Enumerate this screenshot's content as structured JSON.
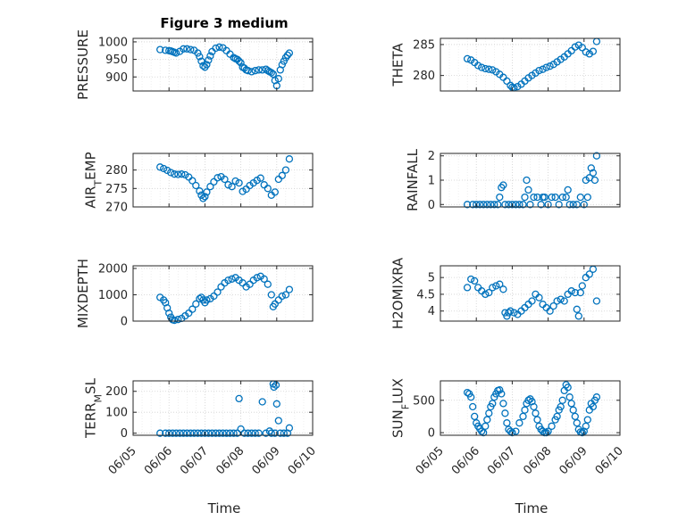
{
  "chart_data": {
    "type": "scatter",
    "title": "Figure 3 medium",
    "x_tick_labels": [
      "06/05",
      "06/06",
      "06/07",
      "06/08",
      "06/09",
      "06/10"
    ],
    "x_label": "Time",
    "marker": "circle",
    "marker_color": "#0072BD",
    "grid": true,
    "grid_style": "dotted",
    "panels": [
      {
        "id": "pressure",
        "ylabel": "PRESSURE",
        "ylim": [
          860,
          1010
        ],
        "yticks": [
          900,
          950,
          1000
        ],
        "x": [
          5.75,
          5.9,
          6.0,
          6.05,
          6.1,
          6.15,
          6.2,
          6.3,
          6.4,
          6.5,
          6.6,
          6.7,
          6.8,
          6.85,
          6.9,
          6.95,
          7.0,
          7.05,
          7.1,
          7.15,
          7.2,
          7.3,
          7.4,
          7.5,
          7.6,
          7.7,
          7.8,
          7.85,
          7.9,
          7.95,
          8.0,
          8.05,
          8.1,
          8.15,
          8.2,
          8.3,
          8.4,
          8.5,
          8.6,
          8.7,
          8.75,
          8.8,
          8.85,
          8.9,
          8.95,
          9.0,
          9.05,
          9.1,
          9.15,
          9.2,
          9.25,
          9.3,
          9.35
        ],
        "y": [
          978,
          976,
          975,
          974,
          972,
          970,
          968,
          973,
          980,
          980,
          978,
          976,
          968,
          958,
          945,
          932,
          928,
          935,
          948,
          960,
          972,
          982,
          985,
          983,
          975,
          965,
          955,
          952,
          950,
          945,
          940,
          928,
          925,
          920,
          918,
          915,
          918,
          920,
          920,
          922,
          918,
          915,
          912,
          908,
          890,
          875,
          895,
          920,
          935,
          945,
          955,
          962,
          968
        ]
      },
      {
        "id": "theta",
        "ylabel": "THETA",
        "ylim": [
          277.5,
          286
        ],
        "yticks": [
          280,
          285
        ],
        "x": [
          5.75,
          5.85,
          5.95,
          6.05,
          6.15,
          6.25,
          6.35,
          6.45,
          6.55,
          6.65,
          6.75,
          6.85,
          6.95,
          7.0,
          7.05,
          7.15,
          7.25,
          7.35,
          7.45,
          7.55,
          7.65,
          7.75,
          7.85,
          7.95,
          8.05,
          8.15,
          8.25,
          8.35,
          8.45,
          8.55,
          8.65,
          8.75,
          8.85,
          8.95,
          9.05,
          9.15,
          9.25,
          9.35
        ],
        "y": [
          282.7,
          282.5,
          282.1,
          281.6,
          281.3,
          281.1,
          281.0,
          280.9,
          280.6,
          280.2,
          279.7,
          279.1,
          278.4,
          278.1,
          278.0,
          278.2,
          278.6,
          279.1,
          279.6,
          280.0,
          280.4,
          280.8,
          281.0,
          281.3,
          281.5,
          281.8,
          282.2,
          282.6,
          283.0,
          283.5,
          284.0,
          284.6,
          284.9,
          284.5,
          283.8,
          283.5,
          283.9,
          285.5
        ]
      },
      {
        "id": "air_temp",
        "ylabel": "AIR_TEMP",
        "ylim": [
          270,
          284.5
        ],
        "yticks": [
          270,
          275,
          280
        ],
        "x": [
          5.75,
          5.85,
          5.95,
          6.05,
          6.15,
          6.25,
          6.35,
          6.45,
          6.55,
          6.65,
          6.75,
          6.85,
          6.9,
          6.95,
          7.0,
          7.05,
          7.15,
          7.25,
          7.35,
          7.45,
          7.55,
          7.65,
          7.75,
          7.85,
          7.95,
          8.05,
          8.15,
          8.25,
          8.35,
          8.45,
          8.55,
          8.65,
          8.75,
          8.85,
          8.95,
          9.05,
          9.15,
          9.25,
          9.35
        ],
        "y": [
          280.8,
          280.4,
          279.9,
          279.3,
          278.9,
          278.8,
          278.9,
          278.7,
          278.1,
          277.1,
          275.8,
          274.3,
          273.2,
          272.3,
          272.8,
          274.0,
          275.5,
          276.8,
          277.9,
          278.2,
          277.5,
          276.0,
          275.5,
          277.0,
          276.5,
          274.2,
          274.8,
          275.8,
          276.5,
          277.2,
          277.8,
          276.0,
          275.0,
          273.2,
          274.0,
          277.5,
          278.5,
          280.0,
          283.0
        ]
      },
      {
        "id": "rainfall",
        "ylabel": "RAINFALL",
        "ylim": [
          -0.1,
          2.1
        ],
        "yticks": [
          0,
          1,
          2
        ],
        "x": [
          5.75,
          5.9,
          6.0,
          6.1,
          6.2,
          6.3,
          6.4,
          6.5,
          6.6,
          6.65,
          6.7,
          6.75,
          6.8,
          6.9,
          7.0,
          7.1,
          7.2,
          7.3,
          7.35,
          7.4,
          7.45,
          7.5,
          7.6,
          7.7,
          7.8,
          7.85,
          7.9,
          8.0,
          8.1,
          8.2,
          8.3,
          8.4,
          8.5,
          8.55,
          8.6,
          8.7,
          8.8,
          8.9,
          9.0,
          9.05,
          9.1,
          9.15,
          9.2,
          9.25,
          9.3,
          9.35
        ],
        "y": [
          0,
          0,
          0,
          0,
          0,
          0,
          0,
          0,
          0,
          0.3,
          0.7,
          0.8,
          0,
          0,
          0,
          0,
          0,
          0,
          0.3,
          1.0,
          0.6,
          0,
          0.3,
          0.3,
          0,
          0.3,
          0.3,
          0,
          0.3,
          0.3,
          0,
          0.3,
          0.3,
          0.6,
          0,
          0,
          0,
          0.3,
          0,
          1.0,
          0.3,
          1.1,
          1.5,
          1.3,
          1.0,
          2.0
        ]
      },
      {
        "id": "mixdepth",
        "ylabel": "MIXDEPTH",
        "ylim": [
          0,
          2100
        ],
        "yticks": [
          0,
          1000,
          2000
        ],
        "x": [
          5.75,
          5.85,
          5.9,
          5.95,
          6.0,
          6.05,
          6.1,
          6.15,
          6.25,
          6.35,
          6.45,
          6.55,
          6.65,
          6.75,
          6.85,
          6.9,
          6.95,
          7.0,
          7.05,
          7.15,
          7.25,
          7.35,
          7.45,
          7.55,
          7.65,
          7.75,
          7.85,
          7.95,
          8.05,
          8.15,
          8.25,
          8.35,
          8.45,
          8.55,
          8.65,
          8.75,
          8.85,
          8.9,
          8.95,
          9.05,
          9.15,
          9.25,
          9.35
        ],
        "y": [
          900,
          800,
          700,
          500,
          300,
          150,
          50,
          30,
          60,
          100,
          200,
          300,
          450,
          650,
          850,
          900,
          800,
          700,
          800,
          850,
          950,
          1100,
          1300,
          1450,
          1550,
          1600,
          1650,
          1550,
          1450,
          1300,
          1400,
          1550,
          1650,
          1700,
          1600,
          1400,
          1000,
          550,
          650,
          800,
          950,
          1000,
          1200
        ]
      },
      {
        "id": "h2omixra",
        "ylabel": "H2OMIXRA",
        "ylim": [
          3.7,
          5.35
        ],
        "yticks": [
          4,
          4.5,
          5
        ],
        "x": [
          5.75,
          5.85,
          5.95,
          6.05,
          6.15,
          6.25,
          6.35,
          6.45,
          6.55,
          6.65,
          6.75,
          6.8,
          6.85,
          6.9,
          6.95,
          7.05,
          7.15,
          7.25,
          7.35,
          7.45,
          7.55,
          7.65,
          7.75,
          7.85,
          7.95,
          8.05,
          8.15,
          8.25,
          8.35,
          8.45,
          8.55,
          8.65,
          8.75,
          8.8,
          8.85,
          8.9,
          8.95,
          9.05,
          9.15,
          9.25,
          9.35
        ],
        "y": [
          4.7,
          4.95,
          4.9,
          4.7,
          4.6,
          4.5,
          4.55,
          4.7,
          4.75,
          4.8,
          4.65,
          3.95,
          3.85,
          3.95,
          4.0,
          3.95,
          3.9,
          4.0,
          4.1,
          4.2,
          4.3,
          4.5,
          4.4,
          4.2,
          4.1,
          4.0,
          4.15,
          4.3,
          4.35,
          4.3,
          4.5,
          4.6,
          4.55,
          4.05,
          3.85,
          4.55,
          4.75,
          5.0,
          5.1,
          5.25,
          4.3
        ]
      },
      {
        "id": "terr_msl",
        "ylabel": "TERR_MSL",
        "ylim": [
          -10,
          250
        ],
        "yticks": [
          0,
          100,
          200
        ],
        "x": [
          5.75,
          5.9,
          6.0,
          6.1,
          6.2,
          6.3,
          6.4,
          6.5,
          6.6,
          6.7,
          6.8,
          6.9,
          7.0,
          7.1,
          7.2,
          7.3,
          7.4,
          7.5,
          7.6,
          7.7,
          7.8,
          7.9,
          7.95,
          8.0,
          8.1,
          8.2,
          8.3,
          8.4,
          8.5,
          8.6,
          8.7,
          8.8,
          8.85,
          8.9,
          8.92,
          8.95,
          8.98,
          9.0,
          9.05,
          9.1,
          9.2,
          9.3,
          9.35
        ],
        "y": [
          0,
          0,
          0,
          0,
          0,
          0,
          0,
          0,
          0,
          0,
          0,
          0,
          0,
          0,
          0,
          0,
          0,
          0,
          0,
          0,
          0,
          0,
          165,
          20,
          0,
          0,
          0,
          0,
          0,
          150,
          0,
          10,
          0,
          235,
          220,
          0,
          230,
          140,
          60,
          0,
          0,
          0,
          25
        ]
      },
      {
        "id": "sun_flux",
        "ylabel": "SUN_FLUX",
        "ylim": [
          -40,
          800
        ],
        "yticks": [
          0,
          500
        ],
        "x": [
          5.75,
          5.8,
          5.85,
          5.9,
          5.95,
          6.0,
          6.05,
          6.1,
          6.15,
          6.2,
          6.25,
          6.3,
          6.35,
          6.4,
          6.45,
          6.5,
          6.55,
          6.6,
          6.65,
          6.7,
          6.75,
          6.8,
          6.85,
          6.9,
          6.95,
          7.0,
          7.1,
          7.2,
          7.3,
          7.35,
          7.4,
          7.45,
          7.5,
          7.55,
          7.6,
          7.65,
          7.7,
          7.75,
          7.8,
          7.85,
          7.9,
          7.95,
          8.0,
          8.1,
          8.2,
          8.25,
          8.3,
          8.35,
          8.4,
          8.45,
          8.5,
          8.55,
          8.6,
          8.65,
          8.7,
          8.75,
          8.8,
          8.85,
          8.9,
          8.95,
          9.0,
          9.05,
          9.1,
          9.15,
          9.2,
          9.25,
          9.3,
          9.35
        ],
        "y": [
          620,
          600,
          550,
          400,
          250,
          150,
          100,
          60,
          20,
          0,
          100,
          200,
          300,
          400,
          450,
          550,
          600,
          650,
          660,
          600,
          450,
          300,
          150,
          50,
          20,
          0,
          20,
          150,
          250,
          350,
          450,
          500,
          520,
          480,
          400,
          300,
          200,
          100,
          50,
          20,
          0,
          0,
          20,
          100,
          200,
          250,
          350,
          400,
          500,
          650,
          740,
          700,
          550,
          450,
          350,
          250,
          150,
          50,
          10,
          0,
          20,
          100,
          200,
          350,
          450,
          400,
          500,
          550
        ]
      }
    ]
  }
}
